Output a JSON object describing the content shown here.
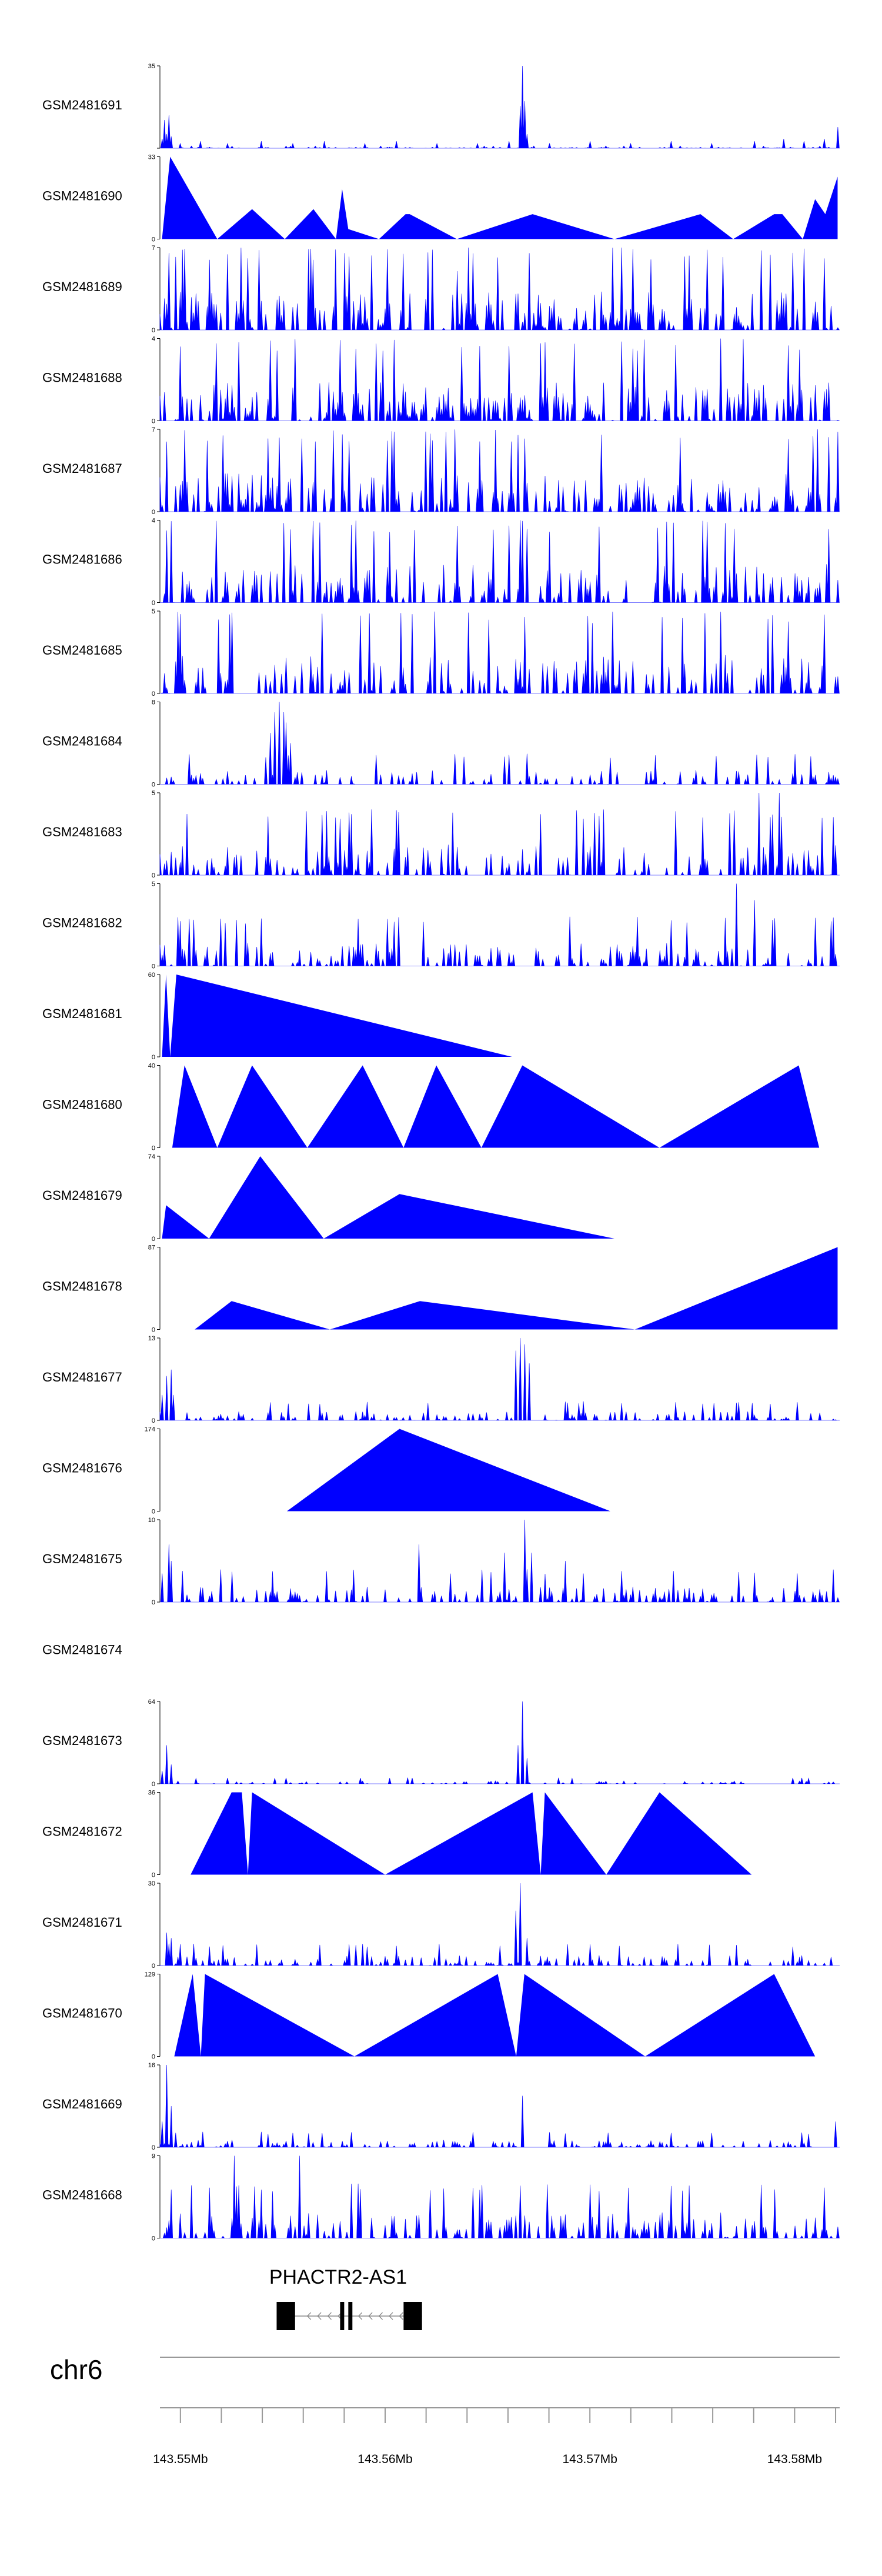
{
  "chart_data": {
    "type": "area",
    "chromosome": "chr6",
    "region": [
      143549000,
      143582200
    ],
    "color": "#0000ff",
    "gene": {
      "name": "PHACTR2-AS1",
      "strand": "-",
      "start": 143554700,
      "end": 143561800,
      "exons": [
        [
          143554700,
          143555600
        ],
        [
          143557800,
          143558000
        ],
        [
          143558200,
          143558400
        ],
        [
          143560900,
          143561800
        ]
      ]
    },
    "genome_axis": {
      "tick_labels": [
        "143.55Mb",
        "143.56Mb",
        "143.57Mb",
        "143.58Mb"
      ],
      "tick_positions": [
        143550000,
        143560000,
        143570000,
        143580000
      ],
      "minor_step": 2000
    },
    "tracks": [
      {
        "name": "GSM2481691",
        "ymax": 35,
        "ymin_label": "",
        "ymax_label": "35",
        "peaks": [
          [
            143549100,
            4
          ],
          [
            143549200,
            12
          ],
          [
            143549300,
            6
          ],
          [
            143549400,
            14
          ],
          [
            143549500,
            5
          ],
          [
            143550000,
            2
          ],
          [
            143551000,
            3
          ],
          [
            143552300,
            2
          ],
          [
            143554000,
            3
          ],
          [
            143555500,
            2
          ],
          [
            143557000,
            3
          ],
          [
            143559000,
            2
          ],
          [
            143560500,
            3
          ],
          [
            143562500,
            2
          ],
          [
            143564500,
            2
          ],
          [
            143566000,
            3
          ],
          [
            143566600,
            18
          ],
          [
            143566700,
            35
          ],
          [
            143566800,
            20
          ],
          [
            143566900,
            6
          ],
          [
            143568000,
            2
          ],
          [
            143570000,
            3
          ],
          [
            143572000,
            2
          ],
          [
            143574000,
            3
          ],
          [
            143576000,
            2
          ],
          [
            143578000,
            3
          ],
          [
            143579500,
            4
          ],
          [
            143580500,
            3
          ],
          [
            143581500,
            4
          ],
          [
            143582100,
            9
          ]
        ]
      },
      {
        "name": "GSM2481690",
        "ymax": 33,
        "ymin_label": "0",
        "ymax_label": "33",
        "segments": [
          [
            143549100,
            0
          ],
          [
            143549500,
            33
          ],
          [
            143551800,
            0
          ],
          [
            143553500,
            12
          ],
          [
            143555100,
            0
          ],
          [
            143556500,
            12
          ],
          [
            143557600,
            0
          ],
          [
            143557900,
            20
          ],
          [
            143558200,
            4
          ],
          [
            143559700,
            0
          ],
          [
            143561000,
            10
          ],
          [
            143561200,
            10
          ],
          [
            143563500,
            0
          ],
          [
            143567200,
            10
          ],
          [
            143571200,
            0
          ],
          [
            143575400,
            10
          ],
          [
            143577000,
            0
          ],
          [
            143579000,
            10
          ],
          [
            143579400,
            10
          ],
          [
            143580400,
            0
          ],
          [
            143581000,
            16
          ],
          [
            143581500,
            10
          ],
          [
            143582100,
            25
          ]
        ]
      },
      {
        "name": "GSM2481689",
        "ymax": 7,
        "ymin_label": "0",
        "ymax_label": "7",
        "noise": {
          "seed": 89,
          "density": 0.55,
          "max": 7,
          "spikes": [
            [
              143564100,
              7
            ],
            [
              143563500,
              5
            ],
            [
              143571500,
              7
            ]
          ]
        }
      },
      {
        "name": "GSM2481688",
        "ymax": 4,
        "ymin_label": "0",
        "ymax_label": "4",
        "noise": {
          "seed": 88,
          "density": 0.6,
          "max": 4,
          "spikes": []
        }
      },
      {
        "name": "GSM2481687",
        "ymax": 7,
        "ymin_label": "0",
        "ymax_label": "7",
        "noise": {
          "seed": 87,
          "density": 0.55,
          "max": 7,
          "spikes": [
            [
              143581100,
              7
            ]
          ]
        }
      },
      {
        "name": "GSM2481686",
        "ymax": 4,
        "ymin_label": "0",
        "ymax_label": "4",
        "noise": {
          "seed": 86,
          "density": 0.55,
          "max": 4,
          "spikes": []
        }
      },
      {
        "name": "GSM2481685",
        "ymax": 5,
        "ymin_label": "0",
        "ymax_label": "5",
        "noise": {
          "seed": 85,
          "density": 0.45,
          "max": 5,
          "spikes": []
        }
      },
      {
        "name": "GSM2481684",
        "ymax": 8,
        "ymin_label": "0",
        "ymax_label": "8",
        "noise": {
          "seed": 84,
          "density": 0.35,
          "max": 3,
          "spikes": [
            [
              143554400,
              5
            ],
            [
              143554600,
              7
            ],
            [
              143554800,
              8
            ],
            [
              143555000,
              7
            ],
            [
              143555200,
              6
            ],
            [
              143555400,
              4
            ]
          ]
        }
      },
      {
        "name": "GSM2481683",
        "ymax": 5,
        "ymin_label": "0",
        "ymax_label": "5",
        "noise": {
          "seed": 83,
          "density": 0.45,
          "max": 4,
          "spikes": [
            [
              143578300,
              5
            ],
            [
              143579300,
              5
            ]
          ]
        }
      },
      {
        "name": "GSM2481682",
        "ymax": 5,
        "ymin_label": "0",
        "ymax_label": "5",
        "noise": {
          "seed": 82,
          "density": 0.45,
          "max": 3,
          "spikes": [
            [
              143577200,
              5
            ],
            [
              143578000,
              4
            ]
          ]
        }
      },
      {
        "name": "GSM2481681",
        "ymax": 60,
        "ymin_label": "0",
        "ymax_label": "60",
        "segments": [
          [
            143549100,
            0
          ],
          [
            143549300,
            60
          ],
          [
            143549500,
            0
          ],
          [
            143549800,
            60
          ],
          [
            143566200,
            0
          ]
        ]
      },
      {
        "name": "GSM2481680",
        "ymax": 40,
        "ymin_label": "0",
        "ymax_label": "40",
        "segments": [
          [
            143549600,
            0
          ],
          [
            143550200,
            40
          ],
          [
            143551800,
            0
          ],
          [
            143553500,
            40
          ],
          [
            143556200,
            0
          ],
          [
            143558900,
            40
          ],
          [
            143560900,
            0
          ],
          [
            143562500,
            40
          ],
          [
            143564700,
            0
          ],
          [
            143566700,
            40
          ],
          [
            143573400,
            0
          ],
          [
            143580200,
            40
          ],
          [
            143581200,
            0
          ]
        ]
      },
      {
        "name": "GSM2481679",
        "ymax": 74,
        "ymin_label": "0",
        "ymax_label": "74",
        "segments": [
          [
            143549100,
            0
          ],
          [
            143549300,
            30
          ],
          [
            143551400,
            0
          ],
          [
            143553900,
            74
          ],
          [
            143557000,
            0
          ],
          [
            143560700,
            40
          ],
          [
            143571200,
            0
          ]
        ]
      },
      {
        "name": "GSM2481678",
        "ymax": 87,
        "ymin_label": "0",
        "ymax_label": "87",
        "segments": [
          [
            143550700,
            0
          ],
          [
            143552500,
            30
          ],
          [
            143557300,
            0
          ],
          [
            143561700,
            30
          ],
          [
            143572200,
            0
          ],
          [
            143582100,
            87
          ]
        ]
      },
      {
        "name": "GSM2481677",
        "ymax": 13,
        "ymin_label": "0",
        "ymax_label": "13",
        "noise": {
          "seed": 77,
          "density": 0.4,
          "max": 3,
          "spikes": [
            [
              143549100,
              4
            ],
            [
              143549300,
              7
            ],
            [
              143549500,
              8
            ],
            [
              143549700,
              4
            ],
            [
              143566400,
              11
            ],
            [
              143566600,
              13
            ],
            [
              143566800,
              12
            ],
            [
              143567000,
              9
            ]
          ]
        }
      },
      {
        "name": "GSM2481676",
        "ymax": 174,
        "ymin_label": "0",
        "ymax_label": "174",
        "segments": [
          [
            143555200,
            0
          ],
          [
            143560700,
            174
          ],
          [
            143571000,
            0
          ]
        ]
      },
      {
        "name": "GSM2481675",
        "ymax": 10,
        "ymin_label": "0",
        "ymax_label": "10",
        "noise": {
          "seed": 75,
          "density": 0.4,
          "max": 4,
          "spikes": [
            [
              143549400,
              7
            ],
            [
              143549600,
              5
            ],
            [
              143561700,
              7
            ],
            [
              143565800,
              6
            ],
            [
              143566800,
              10
            ],
            [
              143567200,
              6
            ],
            [
              143568800,
              5
            ]
          ]
        }
      },
      {
        "name": "GSM2481674",
        "ymax": null,
        "ymin_label": "",
        "ymax_label": "",
        "empty": true
      },
      {
        "name": "GSM2481673",
        "ymax": 64,
        "ymin_label": "0",
        "ymax_label": "64",
        "noise": {
          "seed": 73,
          "density": 0.3,
          "max": 5,
          "spikes": [
            [
              143549100,
              10
            ],
            [
              143549300,
              30
            ],
            [
              143549500,
              15
            ],
            [
              143566500,
              30
            ],
            [
              143566700,
              64
            ],
            [
              143566900,
              20
            ]
          ]
        }
      },
      {
        "name": "GSM2481672",
        "ymax": 36,
        "ymin_label": "0",
        "ymax_label": "36",
        "segments": [
          [
            143550500,
            0
          ],
          [
            143552500,
            36
          ],
          [
            143553000,
            36
          ],
          [
            143553300,
            0
          ],
          [
            143553500,
            36
          ],
          [
            143560000,
            0
          ],
          [
            143567200,
            36
          ],
          [
            143567600,
            0
          ],
          [
            143567800,
            36
          ],
          [
            143570800,
            0
          ],
          [
            143573400,
            36
          ],
          [
            143577900,
            0
          ]
        ]
      },
      {
        "name": "GSM2481671",
        "ymax": 30,
        "ymin_label": "0",
        "ymax_label": "30",
        "noise": {
          "seed": 71,
          "density": 0.4,
          "max": 8,
          "spikes": [
            [
              143549300,
              12
            ],
            [
              143549500,
              10
            ],
            [
              143566400,
              20
            ],
            [
              143566600,
              30
            ],
            [
              143566900,
              10
            ]
          ]
        }
      },
      {
        "name": "GSM2481670",
        "ymax": 129,
        "ymin_label": "0",
        "ymax_label": "129",
        "segments": [
          [
            143549700,
            0
          ],
          [
            143550600,
            129
          ],
          [
            143551000,
            0
          ],
          [
            143551200,
            129
          ],
          [
            143558500,
            0
          ],
          [
            143565500,
            129
          ],
          [
            143566400,
            0
          ],
          [
            143566800,
            129
          ],
          [
            143572700,
            0
          ],
          [
            143579000,
            129
          ],
          [
            143581000,
            0
          ]
        ]
      },
      {
        "name": "GSM2481669",
        "ymax": 16,
        "ymin_label": "0",
        "ymax_label": "16",
        "noise": {
          "seed": 69,
          "density": 0.4,
          "max": 3,
          "spikes": [
            [
              143549100,
              5
            ],
            [
              143549300,
              16
            ],
            [
              143549500,
              8
            ],
            [
              143566700,
              10
            ],
            [
              143582000,
              5
            ]
          ]
        }
      },
      {
        "name": "GSM2481668",
        "ymax": 9,
        "ymin_label": "0",
        "ymax_label": "9",
        "noise": {
          "seed": 68,
          "density": 0.5,
          "max": 6,
          "spikes": [
            [
              143552600,
              9
            ],
            [
              143555800,
              9
            ]
          ]
        }
      }
    ]
  }
}
